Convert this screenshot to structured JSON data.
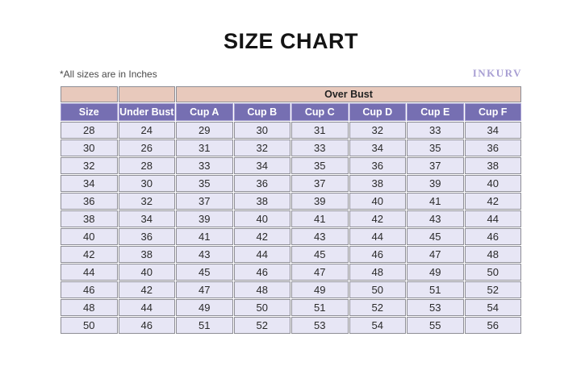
{
  "page": {
    "title": "SIZE CHART",
    "note": "*All sizes are in Inches",
    "brand": "INKURV"
  },
  "colors": {
    "group_header_pink": "#e8c9bc",
    "column_header_purple": "#766fb2",
    "cell_lavender": "#e7e6f5",
    "cell_border_gray": "#8e8e96",
    "brand_purple": "#a89fd3",
    "title_black": "#141414"
  },
  "chart_data": {
    "type": "table",
    "title": "SIZE CHART",
    "subtitle": "*All sizes are in Inches",
    "group_header": "Over Bust",
    "group_header_spans_columns": [
      "Cup A",
      "Cup B",
      "Cup C",
      "Cup D",
      "Cup E",
      "Cup F"
    ],
    "columns": [
      "Size",
      "Under Bust",
      "Cup A",
      "Cup B",
      "Cup C",
      "Cup D",
      "Cup E",
      "Cup F"
    ],
    "rows": [
      [
        28,
        24,
        29,
        30,
        31,
        32,
        33,
        34
      ],
      [
        30,
        26,
        31,
        32,
        33,
        34,
        35,
        36
      ],
      [
        32,
        28,
        33,
        34,
        35,
        36,
        37,
        38
      ],
      [
        34,
        30,
        35,
        36,
        37,
        38,
        39,
        40
      ],
      [
        36,
        32,
        37,
        38,
        39,
        40,
        41,
        42
      ],
      [
        38,
        34,
        39,
        40,
        41,
        42,
        43,
        44
      ],
      [
        40,
        36,
        41,
        42,
        43,
        44,
        45,
        46
      ],
      [
        42,
        38,
        43,
        44,
        45,
        46,
        47,
        48
      ],
      [
        44,
        40,
        45,
        46,
        47,
        48,
        49,
        50
      ],
      [
        46,
        42,
        47,
        48,
        49,
        50,
        51,
        52
      ],
      [
        48,
        44,
        49,
        50,
        51,
        52,
        53,
        54
      ],
      [
        50,
        46,
        51,
        52,
        53,
        54,
        55,
        56
      ]
    ]
  }
}
